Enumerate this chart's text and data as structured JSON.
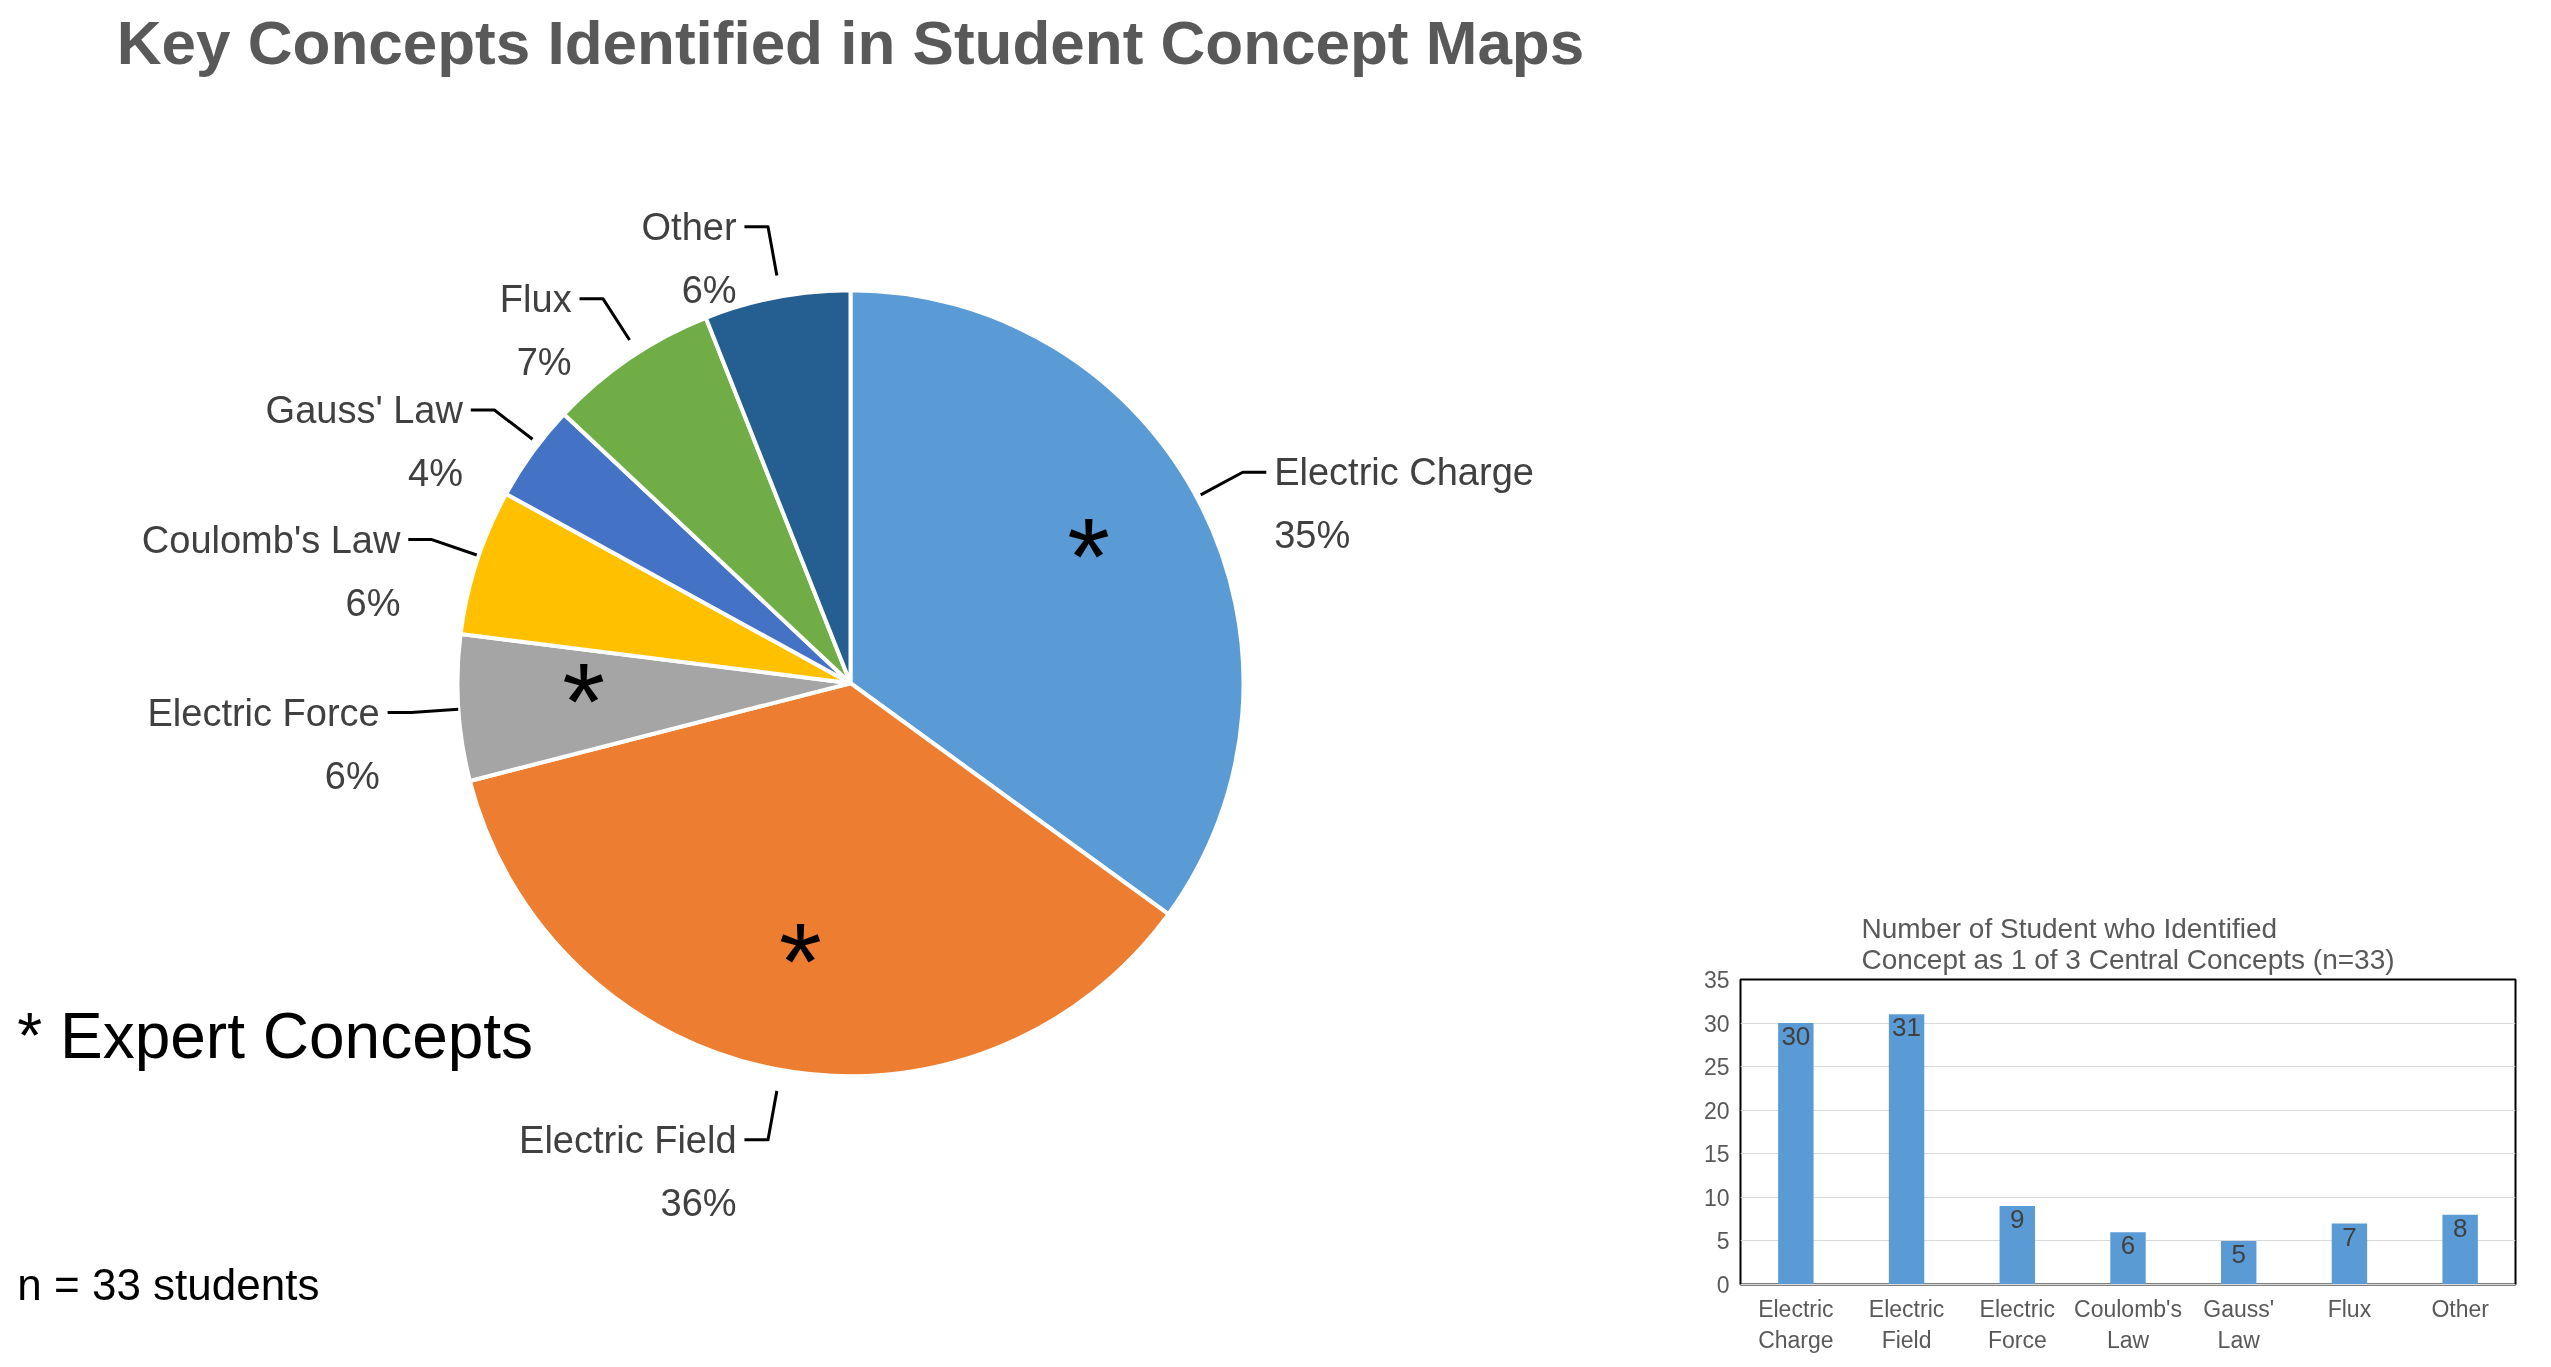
{
  "chart_data": [
    {
      "type": "pie",
      "title": "Key Concepts Identified in Student Concept Maps",
      "categories": [
        "Electric Charge",
        "Electric Field",
        "Electric Force",
        "Coulomb's Law",
        "Gauss' Law",
        "Flux",
        "Other"
      ],
      "values": [
        35,
        36,
        6,
        6,
        4,
        7,
        6
      ],
      "value_labels": [
        "35%",
        "36%",
        "6%",
        "6%",
        "4%",
        "7%",
        "6%"
      ],
      "colors": [
        "#5b9bd5",
        "#ed7d31",
        "#a5a5a5",
        "#ffc000",
        "#4472c4",
        "#70ad47",
        "#255e91"
      ],
      "annotations": [
        {
          "text": "*",
          "x": "Electric Charge"
        },
        {
          "text": "*",
          "x": "Electric Field"
        },
        {
          "text": "*",
          "x": "Electric Force"
        },
        "* Expert Concepts",
        "n = 33 students"
      ]
    },
    {
      "type": "bar",
      "title": "Number of Student who Identified\nConcept as 1 of 3 Central Concepts (n=33)",
      "categories": [
        "Electric Charge",
        "Electric Field",
        "Electric Force",
        "Coulomb's Law",
        "Gauss' Law",
        "Flux",
        "Other"
      ],
      "values": [
        30,
        31,
        9,
        6,
        5,
        7,
        8
      ],
      "color": "#5b9bd5",
      "ylim": [
        0,
        35
      ],
      "yticks": [
        0,
        5,
        10,
        15,
        20,
        25,
        30,
        35
      ],
      "grid": "y",
      "data_labels": true
    }
  ]
}
